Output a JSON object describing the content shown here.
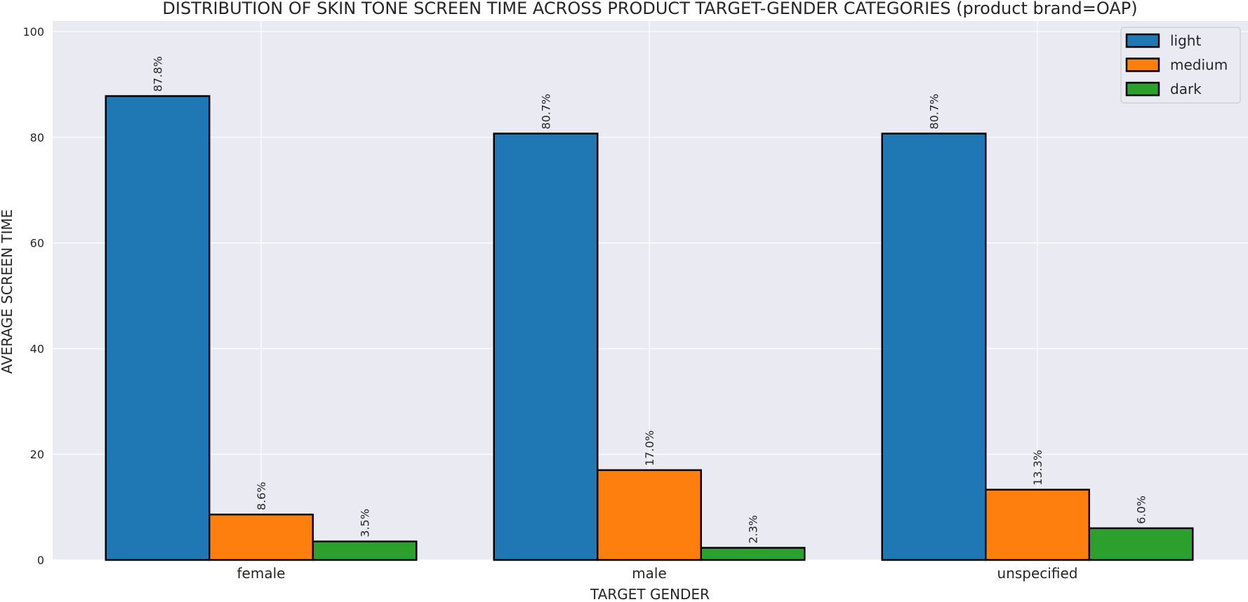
{
  "chart_data": {
    "type": "bar",
    "title": "DISTRIBUTION OF SKIN TONE SCREEN TIME ACROSS PRODUCT TARGET-GENDER CATEGORIES (product brand=OAP)",
    "xlabel": "TARGET GENDER",
    "ylabel": "AVERAGE SCREEN TIME",
    "categories": [
      "female",
      "male",
      "unspecified"
    ],
    "series": [
      {
        "name": "light",
        "color": "#1f77b4",
        "values": [
          87.8,
          80.7,
          80.7
        ],
        "labels": [
          "87.8%",
          "80.7%",
          "80.7%"
        ]
      },
      {
        "name": "medium",
        "color": "#ff7f0e",
        "values": [
          8.6,
          17.0,
          13.3
        ],
        "labels": [
          "8.6%",
          "17.0%",
          "13.3%"
        ]
      },
      {
        "name": "dark",
        "color": "#2ca02c",
        "values": [
          3.5,
          2.3,
          6.0
        ],
        "labels": [
          "3.5%",
          "2.3%",
          "6.0%"
        ]
      }
    ],
    "ylim": [
      0,
      102
    ],
    "yticks": [
      0,
      20,
      40,
      60,
      80,
      100
    ],
    "grid": true,
    "legend_position": "top-right"
  }
}
